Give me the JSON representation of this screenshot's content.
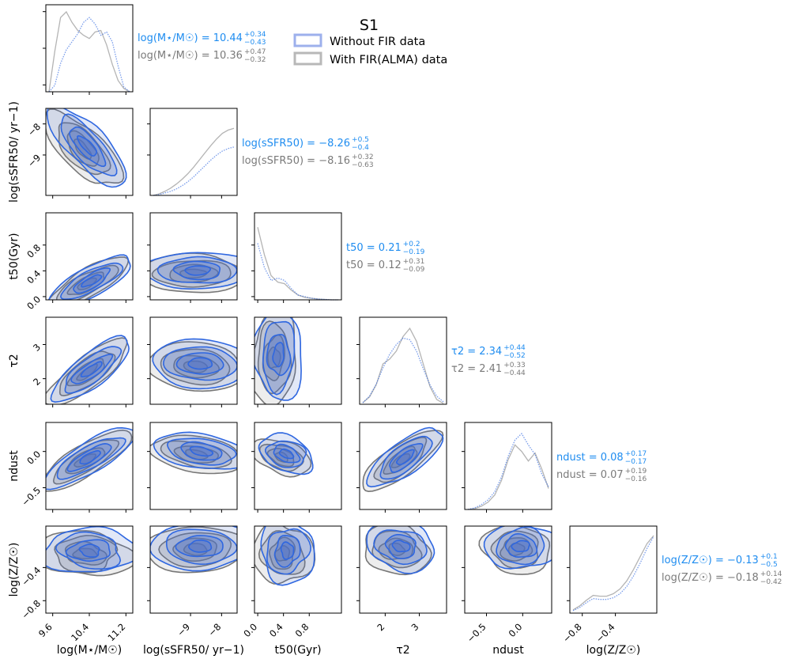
{
  "colors": {
    "without": "#2f67e0",
    "without_fill": "#4a6fd0",
    "without_label": "#1e8cf0",
    "with": "#777777",
    "with_fill": "#8c8c8c",
    "with_label": "#7a7a7a",
    "legend_without_box": "#9db0ec",
    "legend_with_box": "#b8b8b8"
  },
  "chart_data": {
    "type": "corner",
    "title": "S1",
    "legend": {
      "placement": "top-right",
      "entries": [
        "Without FIR data",
        "With FIR(ALMA) data"
      ]
    },
    "parameters": [
      {
        "name": "logMstar",
        "axis_label": "log(M⋆/M☉)",
        "range": [
          9.45,
          11.35
        ],
        "ticks": [
          9.6,
          10.4,
          11.2
        ],
        "tick_labels": [
          "9.6",
          "10.4",
          "11.2"
        ],
        "median_without": {
          "label": "log(M⋆/M☉) = 10.44",
          "plus": "+0.34",
          "minus": "−0.43"
        },
        "median_with": {
          "label": "log(M⋆/M☉) = 10.36",
          "plus": "+0.47",
          "minus": "−0.32"
        },
        "kde_without": [
          0,
          0.08,
          0.35,
          0.52,
          0.62,
          0.72,
          0.86,
          0.92,
          0.84,
          0.7,
          0.74,
          0.62,
          0.32,
          0.06,
          0
        ],
        "kde_with": [
          0,
          0.5,
          0.92,
          0.99,
          0.86,
          0.76,
          0.7,
          0.66,
          0.74,
          0.76,
          0.58,
          0.34,
          0.14,
          0.04,
          0
        ]
      },
      {
        "name": "logsSFR50",
        "axis_label": "log(sSFR50/ yr−1)",
        "range": [
          -10.3,
          -7.5
        ],
        "ticks": [
          -9,
          -8
        ],
        "tick_labels": [
          "−9",
          "−8"
        ],
        "median_without": {
          "label": "log(sSFR50) = −8.26",
          "plus": "+0.5",
          "minus": "−0.4"
        },
        "median_with": {
          "label": "log(sSFR50) = −8.16",
          "plus": "+0.32",
          "minus": "−0.63"
        },
        "kde_without": [
          0,
          0.01,
          0.03,
          0.05,
          0.08,
          0.12,
          0.17,
          0.23,
          0.3,
          0.37,
          0.44,
          0.5,
          0.55,
          0.58,
          0.6
        ],
        "kde_with": [
          0,
          0.02,
          0.05,
          0.09,
          0.14,
          0.2,
          0.27,
          0.35,
          0.44,
          0.53,
          0.62,
          0.7,
          0.77,
          0.81,
          0.83
        ]
      },
      {
        "name": "t50",
        "axis_label": "t50(Gyr)",
        "range": [
          -0.05,
          1.3
        ],
        "ticks": [
          0.0,
          0.4,
          0.8
        ],
        "tick_labels": [
          "0.0",
          "0.4",
          "0.8"
        ],
        "median_without": {
          "label": "t50 = 0.21",
          "plus": "+0.2",
          "minus": "−0.19"
        },
        "median_with": {
          "label": "t50 = 0.12",
          "plus": "+0.31",
          "minus": "−0.09"
        },
        "kde_without": [
          0.7,
          0.4,
          0.24,
          0.27,
          0.24,
          0.14,
          0.06,
          0.04,
          0.02,
          0.01,
          0.005,
          0,
          0
        ],
        "kde_with": [
          0.9,
          0.56,
          0.3,
          0.22,
          0.2,
          0.12,
          0.06,
          0.03,
          0.02,
          0.01,
          0.005,
          0,
          0
        ]
      },
      {
        "name": "tau2",
        "axis_label": "τ2",
        "range": [
          1.25,
          3.8
        ],
        "ticks": [
          2,
          3
        ],
        "tick_labels": [
          "2",
          "3"
        ],
        "median_without": {
          "label": "τ2 = 2.34",
          "plus": "+0.44",
          "minus": "−0.52"
        },
        "median_with": {
          "label": "τ2 = 2.41",
          "plus": "+0.33",
          "minus": "−0.44"
        },
        "kde_without": [
          0.02,
          0.1,
          0.25,
          0.45,
          0.62,
          0.74,
          0.82,
          0.8,
          0.66,
          0.44,
          0.24,
          0.1,
          0.03
        ],
        "kde_with": [
          0.02,
          0.09,
          0.24,
          0.5,
          0.56,
          0.66,
          0.84,
          0.94,
          0.78,
          0.5,
          0.22,
          0.06,
          0.01
        ]
      },
      {
        "name": "ndust",
        "axis_label": "ndust",
        "range": [
          -0.8,
          0.4
        ],
        "ticks": [
          -0.5,
          0.0
        ],
        "tick_labels": [
          "−0.5",
          "0.0"
        ],
        "median_without": {
          "label": "ndust = 0.08",
          "plus": "+0.17",
          "minus": "−0.17"
        },
        "median_with": {
          "label": "ndust = 0.07",
          "plus": "+0.19",
          "minus": "−0.16"
        },
        "kde_without": [
          0,
          0.02,
          0.06,
          0.12,
          0.22,
          0.4,
          0.66,
          0.86,
          0.94,
          0.8,
          0.68,
          0.44,
          0.28
        ],
        "kde_with": [
          0,
          0.01,
          0.04,
          0.09,
          0.18,
          0.36,
          0.62,
          0.8,
          0.72,
          0.6,
          0.7,
          0.5,
          0.26
        ]
      },
      {
        "name": "logZ",
        "axis_label": "log(Z/Z☉)",
        "range": [
          -0.95,
          0.1
        ],
        "ticks": [
          -0.8,
          -0.4
        ],
        "tick_labels": [
          "−0.8",
          "−0.4"
        ],
        "median_without": {
          "label": "log(Z/Z☉) = −0.13",
          "plus": "+0.1",
          "minus": "−0.5"
        },
        "median_with": {
          "label": "log(Z/Z☉) = −0.18",
          "plus": "+0.14",
          "minus": "−0.42"
        },
        "kde_without": [
          0.03,
          0.07,
          0.13,
          0.18,
          0.17,
          0.17,
          0.19,
          0.24,
          0.33,
          0.46,
          0.62,
          0.8,
          0.95
        ],
        "kde_with": [
          0.04,
          0.09,
          0.16,
          0.22,
          0.21,
          0.21,
          0.24,
          0.3,
          0.4,
          0.54,
          0.7,
          0.86,
          0.96
        ]
      }
    ],
    "contours": {
      "ndust_vs_logMstar": {
        "without": {
          "center": [
            10.4,
            0.05
          ],
          "spread": [
            0.55,
            0.28
          ],
          "correlation": 0.75
        },
        "with": {
          "center": [
            10.3,
            0.02
          ],
          "spread": [
            0.5,
            0.24
          ],
          "correlation": 0.78
        }
      }
    }
  }
}
